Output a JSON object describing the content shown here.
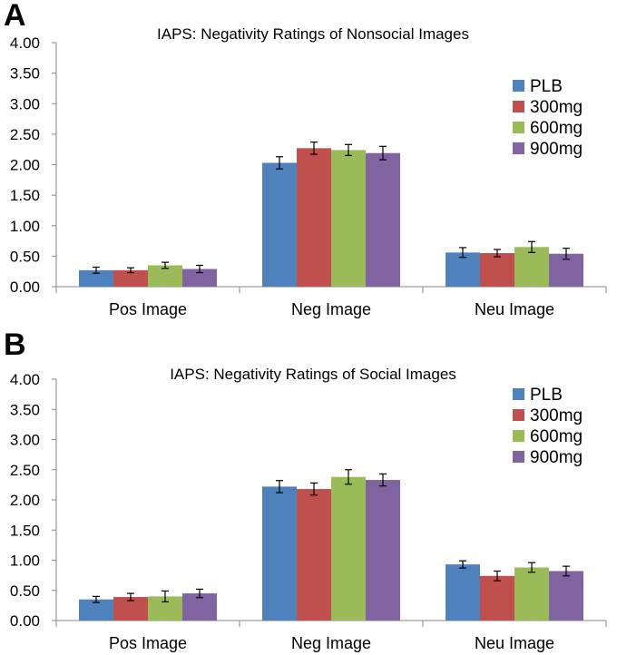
{
  "panels": [
    {
      "letter": "A"
    },
    {
      "letter": "B"
    }
  ],
  "colors": {
    "PLB": "#4f81bd",
    "300mg": "#c0504d",
    "600mg": "#9bbb59",
    "900mg": "#8064a2"
  },
  "chart_data": [
    {
      "type": "bar",
      "title": "IAPS: Negativity Ratings of Nonsocial Images",
      "categories": [
        "Pos Image",
        "Neg Image",
        "Neu Image"
      ],
      "xlabel": "",
      "ylabel": "",
      "ylim": [
        0,
        4
      ],
      "yticks": [
        "0.00",
        "0.50",
        "1.00",
        "1.50",
        "2.00",
        "2.50",
        "3.00",
        "3.50",
        "4.00"
      ],
      "grid": false,
      "legend": "right",
      "series": [
        {
          "name": "PLB",
          "values": [
            0.27,
            2.03,
            0.56
          ],
          "errors": [
            0.05,
            0.1,
            0.08
          ]
        },
        {
          "name": "300mg",
          "values": [
            0.27,
            2.27,
            0.55
          ],
          "errors": [
            0.04,
            0.1,
            0.06
          ]
        },
        {
          "name": "600mg",
          "values": [
            0.35,
            2.24,
            0.65
          ],
          "errors": [
            0.05,
            0.09,
            0.09
          ]
        },
        {
          "name": "900mg",
          "values": [
            0.29,
            2.19,
            0.54
          ],
          "errors": [
            0.06,
            0.11,
            0.09
          ]
        }
      ]
    },
    {
      "type": "bar",
      "title": "IAPS: Negativity Ratings of Social Images",
      "categories": [
        "Pos Image",
        "Neg Image",
        "Neu Image"
      ],
      "xlabel": "",
      "ylabel": "",
      "ylim": [
        0,
        4
      ],
      "yticks": [
        "0.00",
        "0.50",
        "1.00",
        "1.50",
        "2.00",
        "2.50",
        "3.00",
        "3.50",
        "4.00"
      ],
      "grid": false,
      "legend": "top-right",
      "series": [
        {
          "name": "PLB",
          "values": [
            0.35,
            2.22,
            0.93
          ],
          "errors": [
            0.05,
            0.1,
            0.06
          ]
        },
        {
          "name": "300mg",
          "values": [
            0.39,
            2.18,
            0.74
          ],
          "errors": [
            0.06,
            0.1,
            0.08
          ]
        },
        {
          "name": "600mg",
          "values": [
            0.4,
            2.38,
            0.88
          ],
          "errors": [
            0.09,
            0.12,
            0.08
          ]
        },
        {
          "name": "900mg",
          "values": [
            0.45,
            2.33,
            0.82
          ],
          "errors": [
            0.07,
            0.1,
            0.08
          ]
        }
      ]
    }
  ]
}
